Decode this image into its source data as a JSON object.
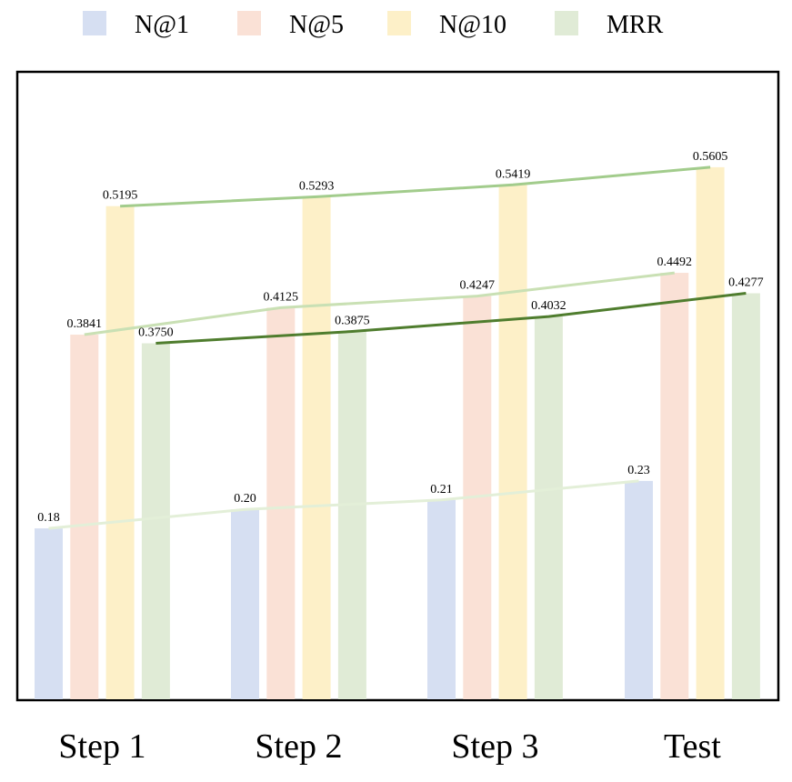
{
  "chart_data": {
    "type": "bar",
    "categories": [
      "Step 1",
      "Step 2",
      "Step 3",
      "Test"
    ],
    "series": [
      {
        "name": "N@1",
        "values": [
          0.18,
          0.2,
          0.21,
          0.23
        ],
        "labels": [
          "0.18",
          "0.20",
          "0.21",
          "0.23"
        ],
        "color": "#d6dff2",
        "line_color": "#e3efd8"
      },
      {
        "name": "N@5",
        "values": [
          0.3841,
          0.4125,
          0.4247,
          0.4492
        ],
        "labels": [
          "0.3841",
          "0.4125",
          "0.4247",
          "0.4492"
        ],
        "color": "#fae1d6",
        "line_color": "#c9e0b4"
      },
      {
        "name": "N@10",
        "values": [
          0.5195,
          0.5293,
          0.5419,
          0.5605
        ],
        "labels": [
          "0.5195",
          "0.5293",
          "0.5419",
          "0.5605"
        ],
        "color": "#fdf0c8",
        "line_color": "#a2cc8c"
      },
      {
        "name": "MRR",
        "values": [
          0.375,
          0.3875,
          0.4032,
          0.4277
        ],
        "labels": [
          "0.3750",
          "0.3875",
          "0.4032",
          "0.4277"
        ],
        "color": "#e0ebd6",
        "line_color": "#4f7d2e"
      }
    ],
    "title": "",
    "xlabel": "",
    "ylabel": "",
    "ylim": [
      0,
      0.66
    ],
    "grid": false,
    "legend": "top"
  }
}
